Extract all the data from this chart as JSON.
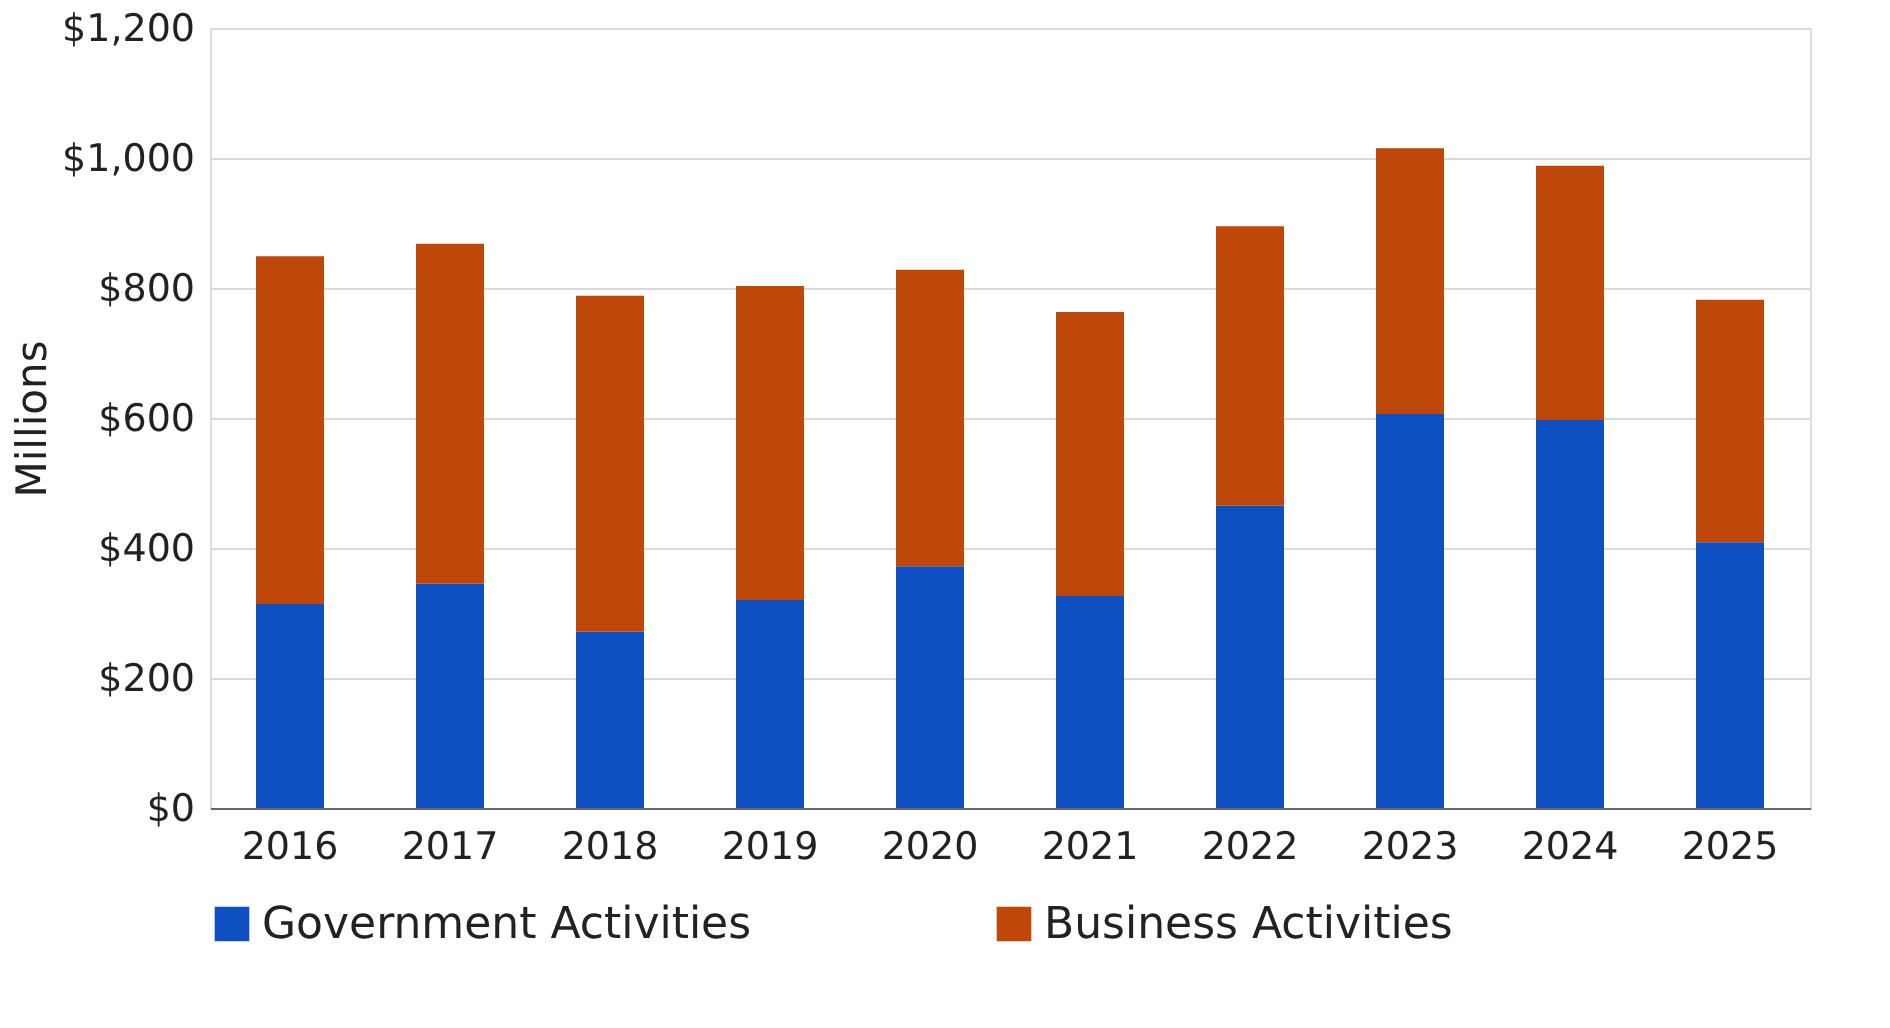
{
  "chart_data": {
    "type": "bar",
    "stacked": true,
    "ylabel": "Millions",
    "categories": [
      "2016",
      "2017",
      "2018",
      "2019",
      "2020",
      "2021",
      "2022",
      "2023",
      "2024",
      "2025"
    ],
    "series": [
      {
        "name": "Government Activities",
        "color": "#0f50c0",
        "values": [
          314,
          345,
          271,
          320,
          372,
          326,
          465,
          606,
          597,
          409
        ]
      },
      {
        "name": "Business Activities",
        "color": "#c0470a",
        "values": [
          535,
          523,
          517,
          483,
          456,
          437,
          430,
          409,
          391,
          373
        ]
      }
    ],
    "ylim": [
      0,
      1200
    ],
    "yticks": [
      {
        "value": 0,
        "label": "$0"
      },
      {
        "value": 200,
        "label": "$200"
      },
      {
        "value": 400,
        "label": "$400"
      },
      {
        "value": 600,
        "label": "$600"
      },
      {
        "value": 800,
        "label": "$800"
      },
      {
        "value": 1000,
        "label": "$1,000"
      },
      {
        "value": 1200,
        "label": "$1,200"
      }
    ],
    "grid": "y",
    "legend": "bottom"
  }
}
